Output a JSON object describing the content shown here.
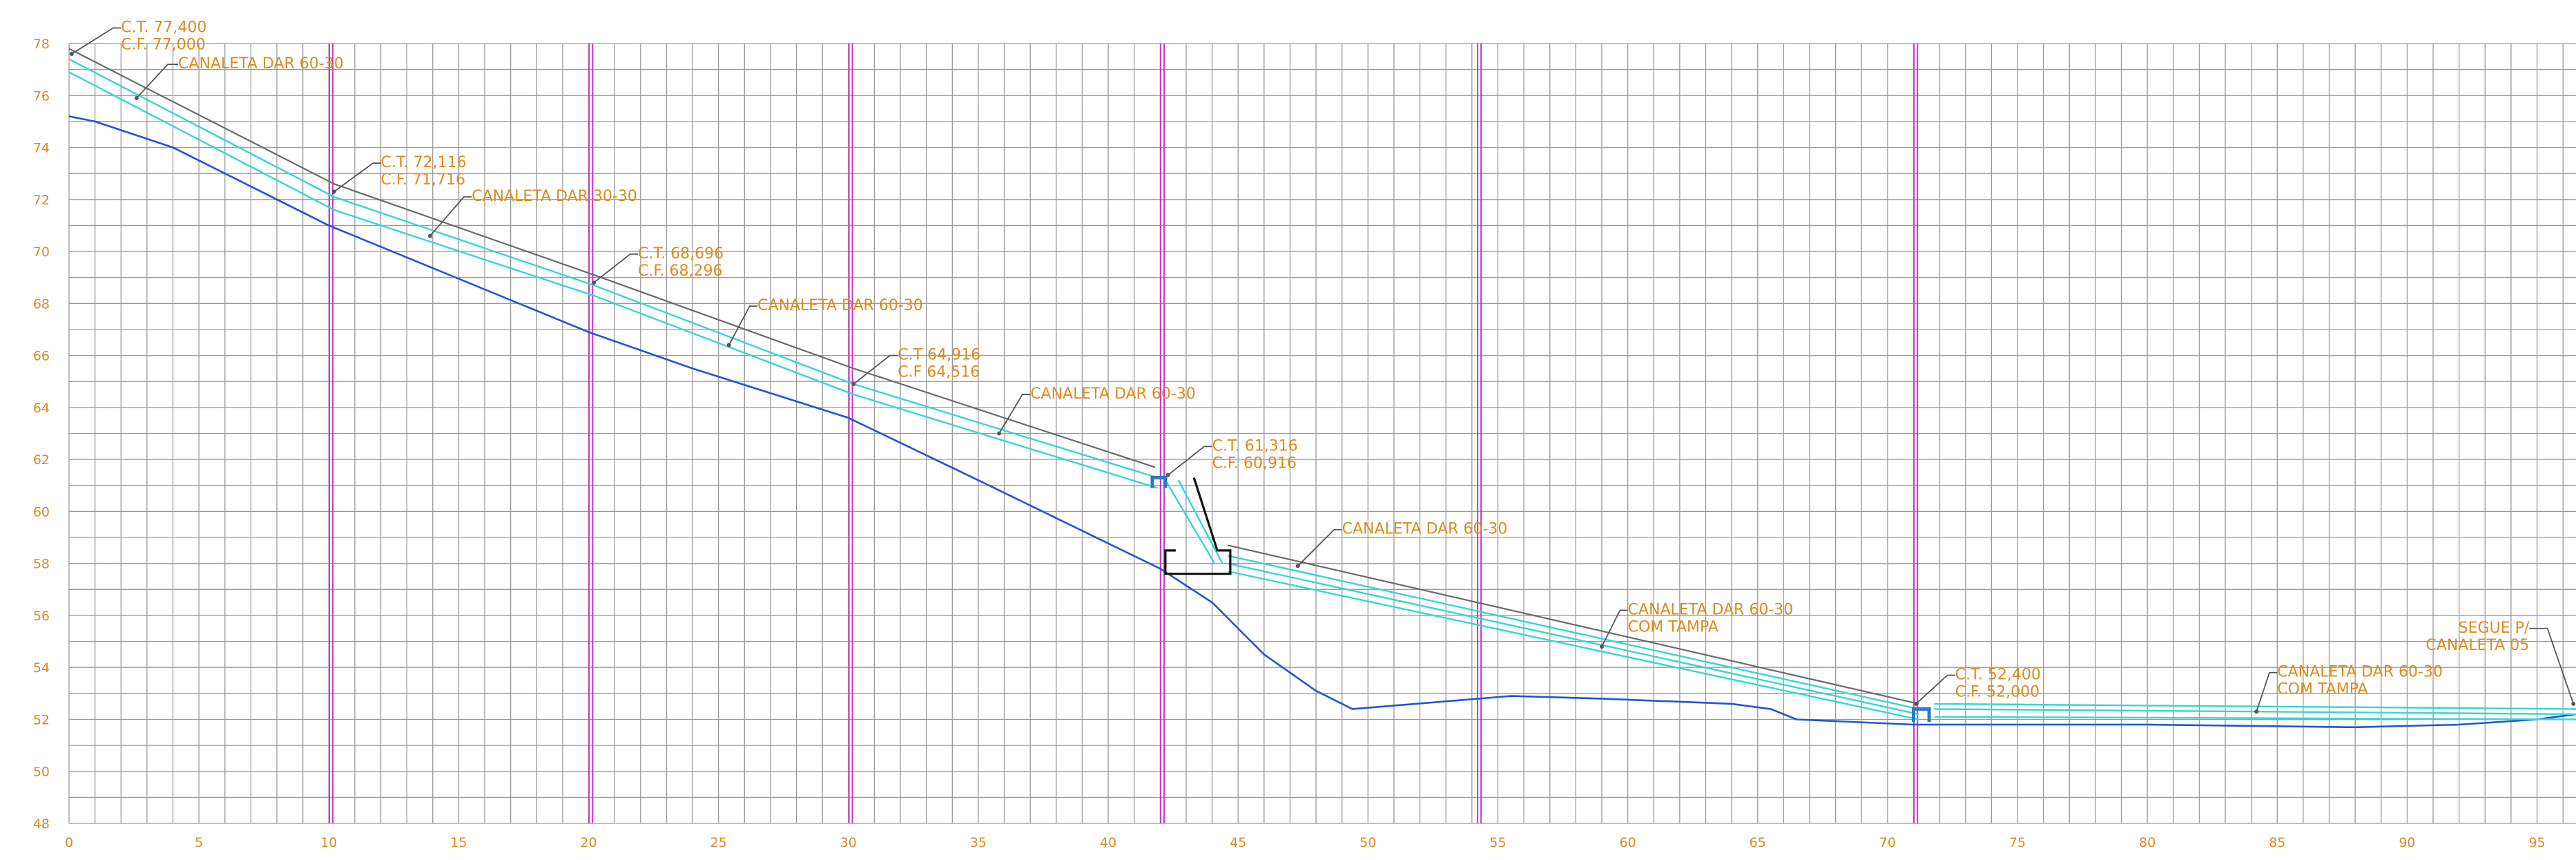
{
  "colors": {
    "grid": "#9a9a9a",
    "tick_text": "#e08a1e",
    "callout_text": "#e08a1e",
    "leader": "#555555",
    "terrain": "#1f55d6",
    "channel": "#35d6d6",
    "top_line": "#6a6a6a",
    "section_marker": "#cc33cc",
    "structure": "#111111",
    "pit": "#2a7ac4"
  },
  "chart_data": {
    "type": "line",
    "xlim": [
      0,
      96.5
    ],
    "ylim": [
      48,
      78
    ],
    "x_ticks": [
      "0",
      "5",
      "10",
      "15",
      "20",
      "25",
      "30",
      "35",
      "40",
      "45",
      "50",
      "55",
      "60",
      "65",
      "70",
      "75",
      "80",
      "85",
      "90",
      "95"
    ],
    "y_ticks": [
      "78",
      "76",
      "74",
      "72",
      "70",
      "68",
      "66",
      "64",
      "62",
      "60",
      "58",
      "56",
      "54",
      "52",
      "50",
      "48"
    ],
    "grid": true,
    "section_markers_x": [
      10.1,
      20.1,
      30.1,
      42.1,
      54.3,
      71.1
    ],
    "series": [
      {
        "role": "terrain",
        "points": [
          [
            0,
            75.2
          ],
          [
            1,
            75.0
          ],
          [
            4,
            74.0
          ],
          [
            10,
            71.0
          ],
          [
            20,
            66.9
          ],
          [
            24,
            65.5
          ],
          [
            30,
            63.6
          ],
          [
            35,
            61.2
          ],
          [
            42,
            57.8
          ],
          [
            44,
            56.5
          ],
          [
            46,
            54.5
          ],
          [
            48,
            53.1
          ],
          [
            49.4,
            52.4
          ],
          [
            55.5,
            52.9
          ],
          [
            59,
            52.8
          ],
          [
            64,
            52.6
          ],
          [
            65.5,
            52.4
          ],
          [
            66.5,
            52.0
          ],
          [
            71,
            51.8
          ],
          [
            80,
            51.8
          ],
          [
            88,
            51.7
          ],
          [
            92,
            51.8
          ],
          [
            95,
            52.0
          ],
          [
            96.5,
            52.2
          ]
        ]
      },
      {
        "role": "ground-top",
        "points": [
          [
            0,
            77.8
          ],
          [
            10.2,
            72.6
          ],
          [
            20.2,
            69.1
          ],
          [
            30.2,
            65.5
          ],
          [
            41.8,
            61.7
          ]
        ]
      },
      {
        "role": "ground-top",
        "points": [
          [
            44.6,
            58.7
          ],
          [
            71.2,
            52.6
          ]
        ]
      },
      {
        "role": "channel",
        "points": [
          [
            0,
            77.4
          ],
          [
            10.2,
            72.1
          ],
          [
            20.2,
            68.7
          ],
          [
            30.2,
            64.9
          ],
          [
            41.9,
            61.3
          ]
        ]
      },
      {
        "role": "channel",
        "points": [
          [
            0,
            76.9
          ],
          [
            10.2,
            71.6
          ],
          [
            20.2,
            68.3
          ],
          [
            30.2,
            64.5
          ],
          [
            41.9,
            60.9
          ]
        ]
      },
      {
        "role": "channel",
        "points": [
          [
            42.2,
            61.2
          ],
          [
            44.1,
            58.0
          ]
        ]
      },
      {
        "role": "channel",
        "points": [
          [
            42.7,
            61.2
          ],
          [
            44.4,
            58.0
          ]
        ]
      },
      {
        "role": "channel",
        "points": [
          [
            44.6,
            58.3
          ],
          [
            71.2,
            52.4
          ]
        ]
      },
      {
        "role": "channel",
        "points": [
          [
            44.6,
            58.0
          ],
          [
            71.2,
            52.2
          ]
        ]
      },
      {
        "role": "channel",
        "points": [
          [
            44.6,
            57.7
          ],
          [
            71.2,
            52.0
          ]
        ]
      },
      {
        "role": "channel",
        "points": [
          [
            71.8,
            52.6
          ],
          [
            96.5,
            52.4
          ]
        ]
      },
      {
        "role": "channel",
        "points": [
          [
            71.8,
            52.4
          ],
          [
            96.5,
            52.2
          ]
        ]
      },
      {
        "role": "channel",
        "points": [
          [
            71.8,
            52.1
          ],
          [
            96.5,
            52.0
          ]
        ]
      }
    ],
    "structures": [
      {
        "role": "drop",
        "points": [
          [
            43.3,
            61.3
          ],
          [
            44.2,
            58.5
          ],
          [
            44.7,
            58.5
          ],
          [
            44.7,
            57.6
          ],
          [
            42.2,
            57.6
          ],
          [
            42.2,
            58.5
          ],
          [
            42.6,
            58.5
          ]
        ]
      },
      {
        "role": "pit",
        "points": [
          [
            41.7,
            60.9
          ],
          [
            41.7,
            61.3
          ],
          [
            42.2,
            61.3
          ],
          [
            42.2,
            60.9
          ]
        ]
      },
      {
        "role": "pit",
        "points": [
          [
            71.0,
            51.9
          ],
          [
            71.0,
            52.4
          ],
          [
            71.6,
            52.4
          ],
          [
            71.6,
            51.9
          ]
        ]
      }
    ],
    "annotations": [
      {
        "lines": [
          "C.T. 77,400",
          "C.F. 77,000"
        ],
        "anchor": [
          0.1,
          77.6
        ],
        "text_at": [
          2.0,
          78.6
        ],
        "elbow": [
          1.7,
          78.6
        ]
      },
      {
        "lines": [
          "CANALETA DAR 60-30"
        ],
        "anchor": [
          2.6,
          75.9
        ],
        "text_at": [
          4.2,
          77.2
        ],
        "elbow": [
          3.8,
          77.2
        ]
      },
      {
        "lines": [
          "C.T. 72,116",
          "C.F. 71,716"
        ],
        "anchor": [
          10.2,
          72.3
        ],
        "text_at": [
          12.0,
          73.4
        ],
        "elbow": [
          11.7,
          73.4
        ]
      },
      {
        "lines": [
          "CANALETA DAR 30-30"
        ],
        "anchor": [
          13.9,
          70.6
        ],
        "text_at": [
          15.5,
          72.1
        ],
        "elbow": [
          15.2,
          72.1
        ]
      },
      {
        "lines": [
          "C.T. 68,696",
          "C.F. 68,296"
        ],
        "anchor": [
          20.2,
          68.8
        ],
        "text_at": [
          21.9,
          69.9
        ],
        "elbow": [
          21.6,
          69.9
        ]
      },
      {
        "lines": [
          "CANALETA DAR 60-30"
        ],
        "anchor": [
          25.4,
          66.4
        ],
        "text_at": [
          26.5,
          67.9
        ],
        "elbow": [
          26.2,
          67.9
        ]
      },
      {
        "lines": [
          "C.T 64,916",
          "C.F 64,516"
        ],
        "anchor": [
          30.2,
          64.9
        ],
        "text_at": [
          31.9,
          66.0
        ],
        "elbow": [
          31.6,
          66.0
        ]
      },
      {
        "lines": [
          "CANALETA DAR 60-30"
        ],
        "anchor": [
          35.8,
          63.0
        ],
        "text_at": [
          37.0,
          64.5
        ],
        "elbow": [
          36.7,
          64.5
        ]
      },
      {
        "lines": [
          "C.T. 61,316",
          "C.F. 60,916"
        ],
        "anchor": [
          42.3,
          61.4
        ],
        "text_at": [
          44.0,
          62.5
        ],
        "elbow": [
          43.7,
          62.5
        ]
      },
      {
        "lines": [
          "CANALETA DAR 60-30"
        ],
        "anchor": [
          47.3,
          57.9
        ],
        "text_at": [
          49.0,
          59.3
        ],
        "elbow": [
          48.7,
          59.3
        ]
      },
      {
        "lines": [
          "CANALETA DAR 60-30",
          "COM TAMPA"
        ],
        "anchor": [
          59.0,
          54.8
        ],
        "text_at": [
          60.0,
          56.2
        ],
        "elbow": [
          59.7,
          56.2
        ]
      },
      {
        "lines": [
          "C.T. 52,400",
          "C.F. 52,000"
        ],
        "anchor": [
          71.1,
          52.6
        ],
        "text_at": [
          72.6,
          53.7
        ],
        "elbow": [
          72.3,
          53.7
        ]
      },
      {
        "lines": [
          "CANALETA DAR 60-30",
          "COM TAMPA"
        ],
        "anchor": [
          84.2,
          52.3
        ],
        "text_at": [
          85.0,
          53.8
        ],
        "elbow": [
          84.7,
          53.8
        ]
      },
      {
        "lines": [
          "SEGUE P/",
          "CANALETA 05"
        ],
        "anchor": [
          96.4,
          52.6
        ],
        "text_at": [
          94.7,
          55.5
        ],
        "elbow": [
          95.4,
          55.5
        ],
        "align": "end"
      }
    ]
  }
}
